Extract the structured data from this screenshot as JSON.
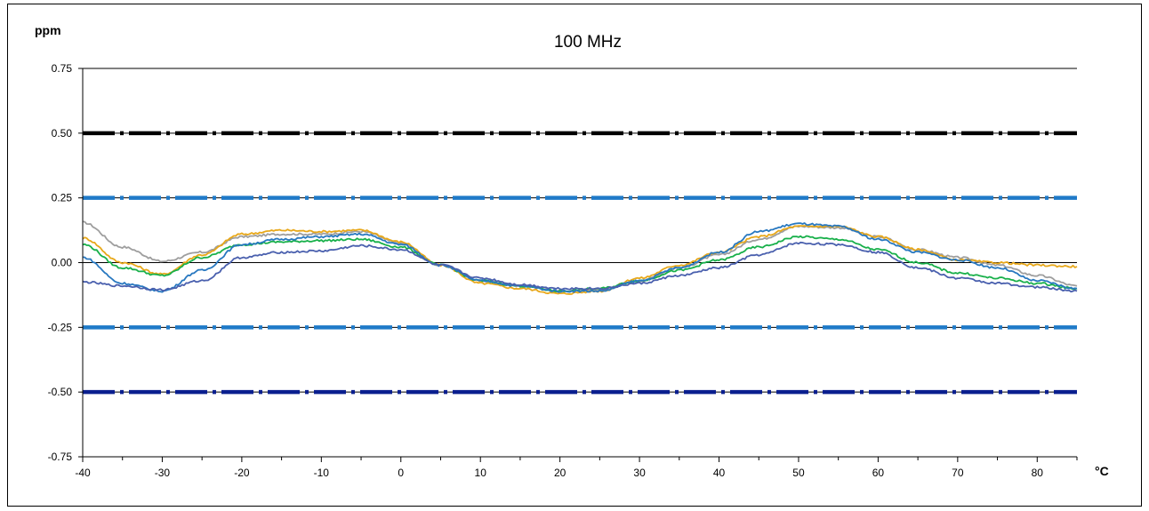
{
  "chart_data": {
    "type": "line",
    "title": "100 MHz",
    "ylabel": "ppm",
    "xlabel": "°C",
    "xlim": [
      -40,
      85
    ],
    "ylim": [
      -0.75,
      0.75
    ],
    "x_ticks": [
      -40,
      -30,
      -20,
      -10,
      0,
      10,
      20,
      30,
      40,
      50,
      60,
      70,
      80
    ],
    "y_ticks": [
      0.75,
      0.5,
      0.25,
      0.0,
      -0.25,
      -0.5,
      -0.75
    ],
    "x_tick_labels": [
      "-40",
      "-30",
      "-20",
      "-10",
      "0",
      "10",
      "20",
      "30",
      "40",
      "50",
      "60",
      "70",
      "80"
    ],
    "y_tick_labels": [
      "0.75",
      "0.50",
      "0.25",
      "0.00",
      "-0.25",
      "-0.50",
      "-0.75"
    ],
    "grid": false,
    "limit_lines": [
      {
        "y": 0.5,
        "color": "#000000"
      },
      {
        "y": 0.25,
        "color": "#1f7ac8"
      },
      {
        "y": -0.25,
        "color": "#1f7ac8"
      },
      {
        "y": -0.5,
        "color": "#0a1f8f"
      }
    ],
    "reference_line": {
      "y": 0.0,
      "color": "#000000"
    },
    "series": [
      {
        "color": "#9e9e9e",
        "x": [
          -40,
          -35,
          -30,
          -25,
          -20,
          -15,
          -10,
          -5,
          0,
          5,
          10,
          15,
          20,
          25,
          30,
          35,
          40,
          45,
          50,
          55,
          60,
          65,
          70,
          75,
          80,
          85
        ],
        "y": [
          0.155,
          0.06,
          0.005,
          0.04,
          0.1,
          0.11,
          0.11,
          0.12,
          0.075,
          -0.01,
          -0.07,
          -0.09,
          -0.11,
          -0.105,
          -0.07,
          -0.02,
          0.03,
          0.09,
          0.14,
          0.135,
          0.1,
          0.05,
          0.02,
          -0.01,
          -0.05,
          -0.09
        ]
      },
      {
        "color": "#e8a81a",
        "x": [
          -40,
          -35,
          -30,
          -25,
          -20,
          -15,
          -10,
          -5,
          0,
          5,
          10,
          15,
          20,
          25,
          30,
          35,
          40,
          45,
          50,
          55,
          60,
          65,
          70,
          75,
          80,
          85
        ],
        "y": [
          0.095,
          0.0,
          -0.045,
          0.03,
          0.11,
          0.125,
          0.12,
          0.125,
          0.08,
          -0.01,
          -0.08,
          -0.1,
          -0.12,
          -0.11,
          -0.06,
          -0.01,
          0.04,
          0.1,
          0.14,
          0.14,
          0.1,
          0.05,
          0.01,
          0.0,
          -0.01,
          -0.015
        ]
      },
      {
        "color": "#18b04a",
        "x": [
          -40,
          -35,
          -30,
          -25,
          -20,
          -15,
          -10,
          -5,
          0,
          5,
          10,
          15,
          20,
          25,
          30,
          35,
          40,
          45,
          50,
          55,
          60,
          65,
          70,
          75,
          80,
          85
        ],
        "y": [
          0.07,
          -0.02,
          -0.05,
          0.02,
          0.07,
          0.08,
          0.085,
          0.09,
          0.06,
          -0.01,
          -0.07,
          -0.09,
          -0.11,
          -0.1,
          -0.07,
          -0.03,
          0.01,
          0.06,
          0.1,
          0.09,
          0.05,
          0.0,
          -0.04,
          -0.06,
          -0.08,
          -0.1
        ]
      },
      {
        "color": "#2878c0",
        "x": [
          -40,
          -35,
          -30,
          -25,
          -20,
          -15,
          -10,
          -5,
          0,
          5,
          10,
          15,
          20,
          25,
          30,
          35,
          40,
          45,
          50,
          55,
          60,
          65,
          70,
          75,
          80,
          85
        ],
        "y": [
          0.02,
          -0.08,
          -0.11,
          -0.03,
          0.07,
          0.09,
          0.1,
          0.11,
          0.07,
          -0.01,
          -0.07,
          -0.09,
          -0.11,
          -0.11,
          -0.07,
          -0.02,
          0.04,
          0.12,
          0.15,
          0.14,
          0.09,
          0.04,
          0.01,
          -0.02,
          -0.07,
          -0.1
        ]
      },
      {
        "color": "#4a60ae",
        "x": [
          -40,
          -35,
          -30,
          -25,
          -20,
          -15,
          -10,
          -5,
          0,
          5,
          10,
          15,
          20,
          25,
          30,
          35,
          40,
          45,
          50,
          55,
          60,
          65,
          70,
          75,
          80,
          85
        ],
        "y": [
          -0.075,
          -0.09,
          -0.105,
          -0.07,
          0.02,
          0.04,
          0.045,
          0.065,
          0.05,
          -0.01,
          -0.06,
          -0.085,
          -0.1,
          -0.1,
          -0.08,
          -0.05,
          -0.02,
          0.03,
          0.075,
          0.07,
          0.04,
          -0.02,
          -0.06,
          -0.08,
          -0.095,
          -0.11
        ]
      }
    ]
  }
}
